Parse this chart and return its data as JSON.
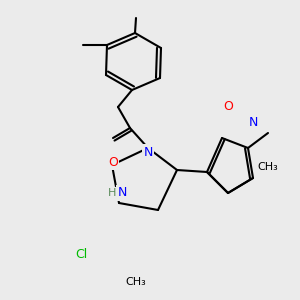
{
  "background_color": "#ebebeb",
  "bond_color": "#000000",
  "bond_width": 1.5,
  "atom_colors": {
    "N": "#0000ff",
    "O": "#ff0000",
    "Cl": "#00bb00",
    "H": "#5a8a5a",
    "C": "#000000"
  },
  "font_size": 9,
  "font_size_small": 8
}
